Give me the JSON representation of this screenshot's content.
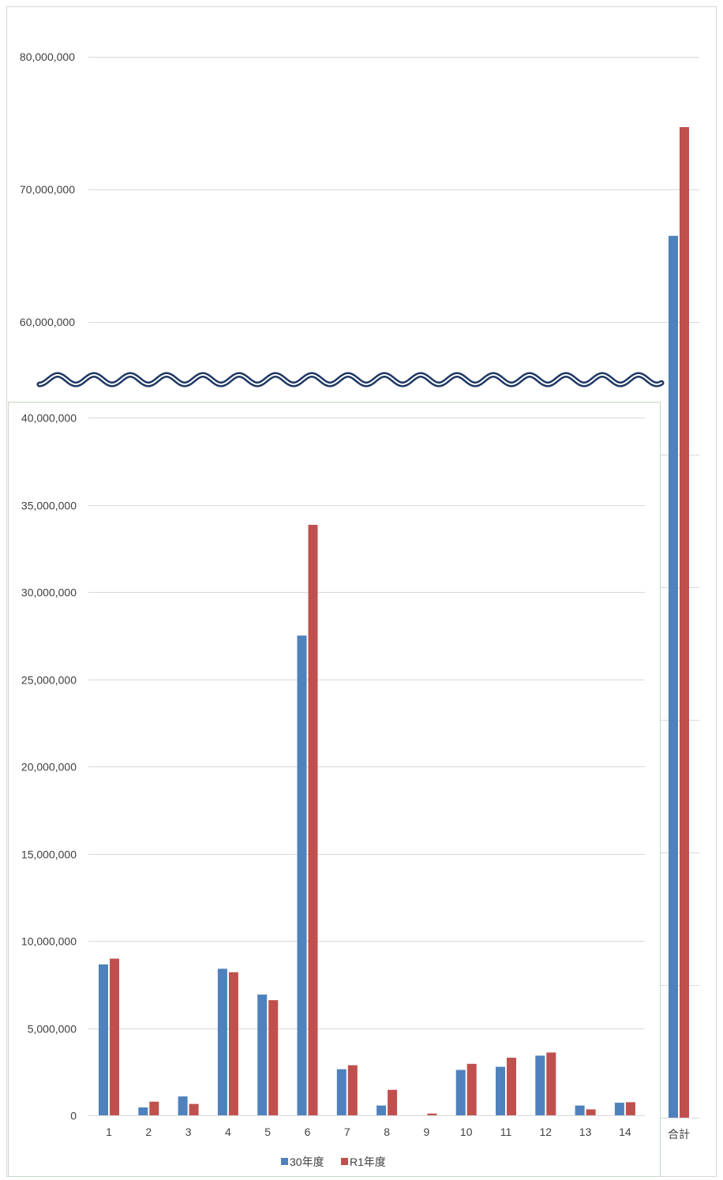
{
  "chart_data": {
    "type": "bar",
    "title": "",
    "xlabel": "",
    "ylabel": "",
    "broken_axis": true,
    "grid": true,
    "legend_placement": "bottom",
    "categories": [
      "1",
      "2",
      "3",
      "4",
      "5",
      "6",
      "7",
      "8",
      "9",
      "10",
      "11",
      "12",
      "13",
      "14",
      "合計"
    ],
    "series": [
      {
        "name": "30年度",
        "color": "#4f81bd",
        "values": [
          8650000,
          450000,
          1080000,
          8400000,
          6920000,
          27500000,
          2640000,
          560000,
          0,
          2600000,
          2780000,
          3420000,
          560000,
          720000,
          66500000
        ]
      },
      {
        "name": "R1年度",
        "color": "#c0504d",
        "values": [
          8980000,
          780000,
          650000,
          8200000,
          6600000,
          33850000,
          2870000,
          1460000,
          100000,
          2950000,
          3300000,
          3600000,
          340000,
          750000,
          74700000
        ]
      }
    ],
    "lower_axis": {
      "ylim": [
        0,
        40000000
      ],
      "ticks": [
        "0",
        "5,000,000",
        "10,000,000",
        "15,000,000",
        "20,000,000",
        "25,000,000",
        "30,000,000",
        "35,000,000",
        "40,000,000"
      ]
    },
    "upper_axis": {
      "ylim": [
        55000000,
        80000000
      ],
      "ticks": [
        "60,000,000",
        "70,000,000",
        "80,000,000"
      ]
    }
  }
}
